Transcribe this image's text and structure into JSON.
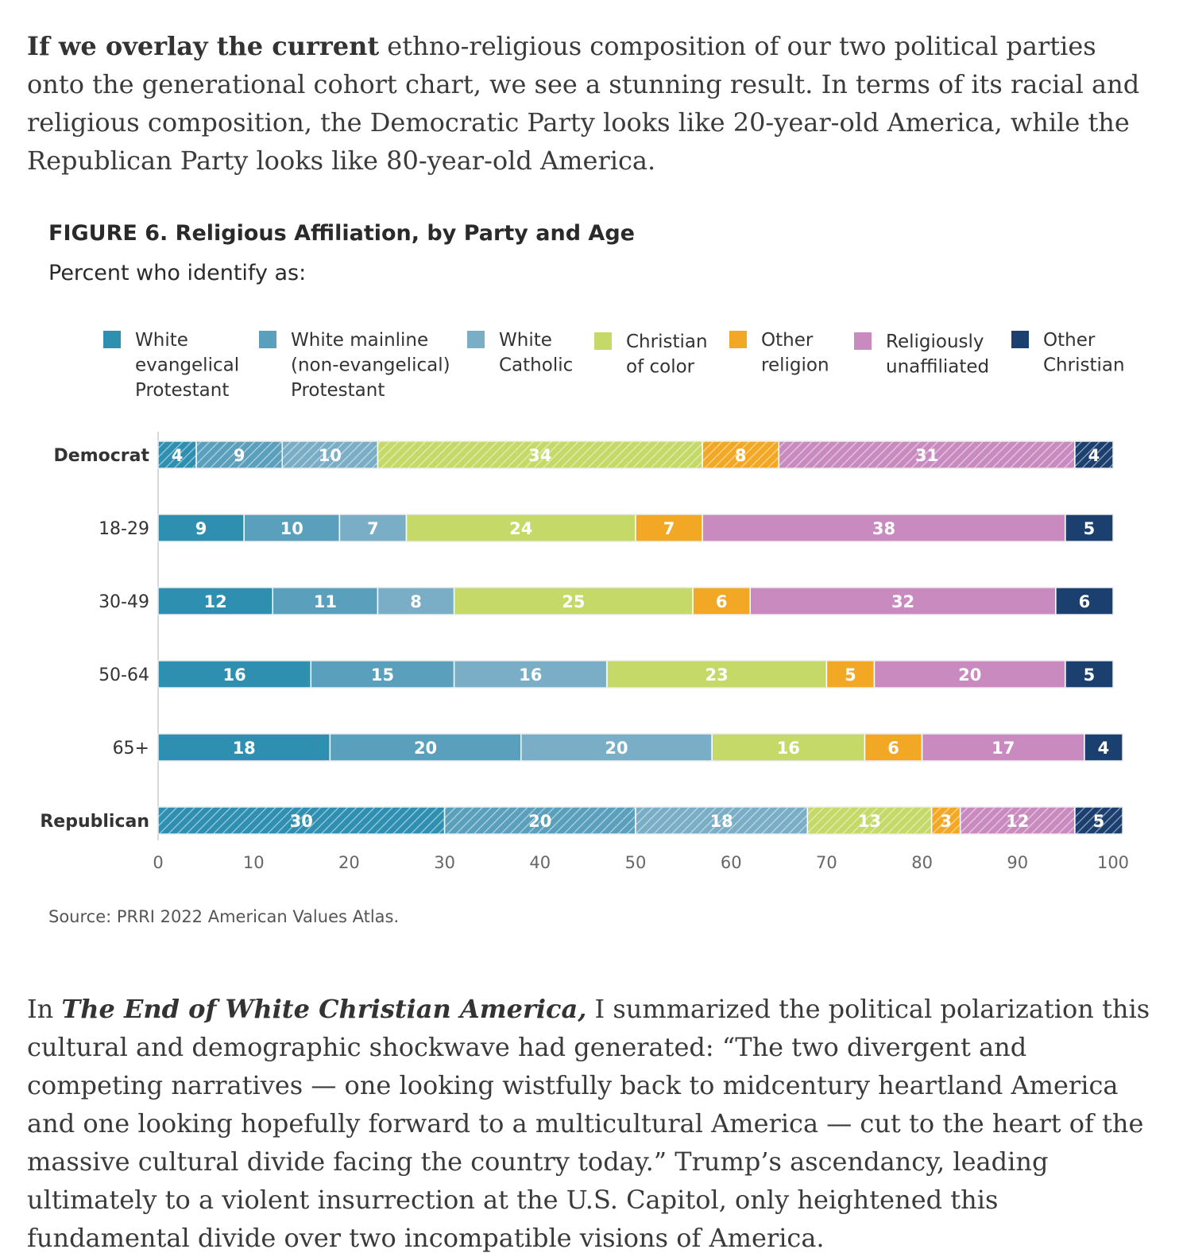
{
  "intro": {
    "bold_lead": "If we overlay the current",
    "text": " ethno-religious composition of our two political parties onto the generational cohort chart, we see a stunning result. In terms of its racial and religious composition, the Democratic Party looks like 20-year-old America, while the Republican Party looks like 80-year-old America."
  },
  "figure": {
    "title": "FIGURE 6.  Religious Affiliation, by Party and Age",
    "subtitle": "Percent who identify as:",
    "source": "Source: PRRI 2022 American Values Atlas."
  },
  "chart_data": {
    "type": "bar",
    "orientation": "horizontal",
    "stacked": true,
    "title": "Religious Affiliation, by Party and Age",
    "xlabel": "",
    "ylabel": "",
    "xlim": [
      0,
      100
    ],
    "xticks": [
      0,
      10,
      20,
      30,
      40,
      50,
      60,
      70,
      80,
      90,
      100
    ],
    "categories": [
      "Democrat",
      "18-29",
      "30-49",
      "50-64",
      "65+",
      "Republican"
    ],
    "hatched_categories": [
      "Democrat",
      "Republican"
    ],
    "bold_categories": [
      "Democrat",
      "Republican"
    ],
    "legend_position": "top",
    "series": [
      {
        "name": "White evangelical Protestant",
        "legend_lines": [
          "White",
          "evangelical",
          "Protestant"
        ],
        "color": "#2e8fb1",
        "values": [
          4,
          9,
          12,
          16,
          18,
          30
        ]
      },
      {
        "name": "White mainline (non-evangelical) Protestant",
        "legend_lines": [
          "White mainline",
          "(non-evangelical)",
          "Protestant"
        ],
        "color": "#5a9fbb",
        "values": [
          9,
          10,
          11,
          15,
          20,
          20
        ]
      },
      {
        "name": "White Catholic",
        "legend_lines": [
          "White",
          "Catholic"
        ],
        "color": "#79aec6",
        "values": [
          10,
          7,
          8,
          16,
          20,
          18
        ]
      },
      {
        "name": "Christian of color",
        "legend_lines": [
          "Christian",
          "of color"
        ],
        "color": "#c4d967",
        "values": [
          34,
          24,
          25,
          23,
          16,
          13
        ]
      },
      {
        "name": "Other religion",
        "legend_lines": [
          "Other",
          "religion"
        ],
        "color": "#f2a824",
        "values": [
          8,
          7,
          6,
          5,
          6,
          3
        ]
      },
      {
        "name": "Religiously unaffiliated",
        "legend_lines": [
          "Religiously",
          "unaffiliated"
        ],
        "color": "#c98bbf",
        "values": [
          31,
          38,
          32,
          20,
          17,
          12
        ]
      },
      {
        "name": "Other Christian",
        "legend_lines": [
          "Other",
          "Christian"
        ],
        "color": "#1b3f6e",
        "values": [
          4,
          5,
          6,
          5,
          4,
          5
        ]
      }
    ]
  },
  "outro": {
    "lead": "In ",
    "book_title": "The End of White Christian America,",
    "text": " I summarized the political polarization this cultural and demographic shockwave had generated: “The two divergent and competing narratives — one looking wistfully back to midcentury heartland America and one looking hopefully forward to a multicultural America — cut to the heart of the massive cultural divide facing the country today.” Trump’s ascendancy, leading ultimately to a violent insurrection at the U.S. Capitol, only heightened this fundamental divide over two incompatible visions of America."
  }
}
